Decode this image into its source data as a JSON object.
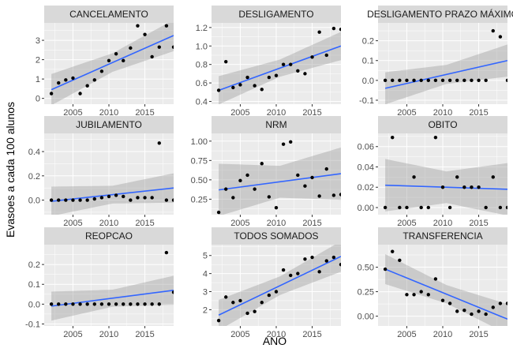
{
  "chart_data": {
    "type": "scatter",
    "facet_layout": "3x3",
    "x_label": "ANO",
    "y_label": "Evasoes a cada 100 alunos",
    "x_range": [
      2001,
      2019
    ],
    "x_ticks": [
      2005,
      2010,
      2015
    ],
    "trend": "linear fit with confidence band",
    "colors": {
      "point": "#000000",
      "line": "#3366ff",
      "band": "#999999",
      "panel": "#ebebeb",
      "strip": "#d9d9d9",
      "grid": "#ffffff"
    },
    "panels": [
      {
        "title": "CANCELAMENTO",
        "ylim": [
          -0.3,
          3.9
        ],
        "y_ticks": [
          0,
          1,
          2,
          3
        ],
        "x": [
          2002,
          2003,
          2004,
          2005,
          2006,
          2007,
          2008,
          2009,
          2010,
          2011,
          2012,
          2013,
          2014,
          2015,
          2016,
          2017,
          2018,
          2019
        ],
        "y": [
          0.25,
          0.8,
          0.95,
          1.05,
          0.25,
          0.65,
          0.95,
          1.4,
          1.95,
          2.3,
          1.95,
          2.6,
          3.75,
          3.3,
          2.15,
          2.65,
          3.75,
          2.65
        ],
        "fit": [
          0.45,
          3.25
        ],
        "band": [
          0.45,
          0.55
        ]
      },
      {
        "title": "DESLIGAMENTO",
        "ylim": [
          0.37,
          1.25
        ],
        "y_ticks": [
          0.4,
          0.6,
          0.8,
          1.0,
          1.2
        ],
        "y_tick_labels": [
          "0.4",
          "0.6",
          "0.8",
          "1.0",
          "1.2"
        ],
        "x": [
          2002,
          2003,
          2004,
          2005,
          2006,
          2007,
          2008,
          2009,
          2010,
          2011,
          2012,
          2013,
          2014,
          2015,
          2016,
          2017,
          2018,
          2019
        ],
        "y": [
          0.52,
          0.83,
          0.55,
          0.58,
          0.66,
          0.57,
          0.53,
          0.66,
          0.68,
          0.8,
          0.8,
          0.73,
          0.7,
          0.88,
          1.15,
          0.9,
          1.19,
          1.18
        ],
        "fit": [
          0.52,
          1.0
        ],
        "band": [
          0.09,
          0.1
        ]
      },
      {
        "title": "DESLIGAMENTO PRAZO MÁXIMO",
        "ylim": [
          -0.12,
          0.29
        ],
        "y_ticks": [
          -0.1,
          0.0,
          0.1,
          0.2
        ],
        "y_tick_labels": [
          "-0.1",
          "0.0",
          "0.1",
          "0.2"
        ],
        "x": [
          2002,
          2003,
          2004,
          2005,
          2006,
          2007,
          2008,
          2009,
          2010,
          2011,
          2012,
          2013,
          2014,
          2015,
          2016,
          2017,
          2018,
          2019
        ],
        "y": [
          0,
          0,
          0,
          0,
          0,
          0,
          0,
          0,
          0,
          0,
          0,
          0,
          0,
          0,
          0,
          0.25,
          0.22,
          0
        ],
        "fit": [
          -0.04,
          0.1
        ],
        "band": [
          0.045,
          0.055
        ]
      },
      {
        "title": "JUBILAMENTO",
        "ylim": [
          -0.12,
          0.55
        ],
        "y_ticks": [
          0.0,
          0.2,
          0.4
        ],
        "y_tick_labels": [
          "0.0",
          "0.2",
          "0.4"
        ],
        "x": [
          2002,
          2003,
          2004,
          2005,
          2006,
          2007,
          2008,
          2009,
          2010,
          2011,
          2012,
          2013,
          2014,
          2015,
          2016,
          2017,
          2018,
          2019
        ],
        "y": [
          0,
          0,
          0,
          0,
          0,
          0,
          0.01,
          0.02,
          0.03,
          0.04,
          0.03,
          0,
          0.02,
          0.02,
          0.02,
          0.47,
          0,
          0
        ],
        "fit": [
          -0.01,
          0.1
        ],
        "band": [
          0.07,
          0.08
        ]
      },
      {
        "title": "NRM",
        "ylim": [
          0.05,
          1.1
        ],
        "y_ticks": [
          0.25,
          0.5,
          0.75,
          1.0
        ],
        "y_tick_labels": [
          "0.25",
          "0.50",
          "0.75",
          "1.00"
        ],
        "x": [
          2002,
          2003,
          2004,
          2005,
          2006,
          2007,
          2008,
          2009,
          2010,
          2011,
          2012,
          2013,
          2014,
          2015,
          2016,
          2017,
          2018,
          2019
        ],
        "y": [
          0.08,
          0.38,
          0.27,
          0.49,
          0.56,
          0.38,
          0.71,
          0.28,
          0.14,
          0.96,
          0.99,
          0.56,
          0.42,
          0.53,
          0.29,
          0.64,
          0.3,
          0.31
        ],
        "fit": [
          0.37,
          0.58
        ],
        "band": [
          0.2,
          0.22
        ]
      },
      {
        "title": "OBITO",
        "ylim": [
          -0.007,
          0.073
        ],
        "y_ticks": [
          0.0,
          0.02,
          0.04,
          0.06
        ],
        "y_tick_labels": [
          "0.00",
          "0.02",
          "0.04",
          "0.06"
        ],
        "x": [
          2002,
          2003,
          2004,
          2005,
          2006,
          2007,
          2008,
          2009,
          2010,
          2011,
          2012,
          2013,
          2014,
          2015,
          2016,
          2017,
          2018,
          2019
        ],
        "y": [
          0,
          0.069,
          0,
          0,
          0.03,
          0,
          0,
          0.069,
          0.02,
          0,
          0.03,
          0.02,
          0.02,
          0.02,
          0,
          0.03,
          0,
          0
        ],
        "fit": [
          0.022,
          0.018
        ],
        "band": [
          0.015,
          0.017
        ]
      },
      {
        "title": "REOPCAO",
        "ylim": [
          -0.11,
          0.3
        ],
        "y_ticks": [
          -0.1,
          0.0,
          0.1,
          0.2
        ],
        "y_tick_labels": [
          "-0.1",
          "0.0",
          "0.1",
          "0.2"
        ],
        "x": [
          2002,
          2003,
          2004,
          2005,
          2006,
          2007,
          2008,
          2009,
          2010,
          2011,
          2012,
          2013,
          2014,
          2015,
          2016,
          2017,
          2018,
          2019
        ],
        "y": [
          0,
          0,
          0,
          0,
          0,
          0,
          0,
          0,
          0,
          0,
          0,
          0,
          0,
          0,
          0,
          0,
          0.26,
          0.06
        ],
        "fit": [
          -0.01,
          0.07
        ],
        "band": [
          0.04,
          0.05
        ]
      },
      {
        "title": "TODOS SOMADOS",
        "ylim": [
          1.1,
          5.6
        ],
        "y_ticks": [
          2,
          3,
          4,
          5
        ],
        "y_tick_labels": [
          "2",
          "3",
          "4",
          "5"
        ],
        "x": [
          2002,
          2003,
          2004,
          2005,
          2006,
          2007,
          2008,
          2009,
          2010,
          2011,
          2012,
          2013,
          2014,
          2015,
          2016,
          2017,
          2018,
          2019
        ],
        "y": [
          1.4,
          2.7,
          2.4,
          2.5,
          1.8,
          1.9,
          2.4,
          2.8,
          3.0,
          4.2,
          3.9,
          4.0,
          4.8,
          4.9,
          4.1,
          4.7,
          4.9,
          4.5
        ],
        "fit": [
          1.7,
          4.95
        ],
        "band": [
          0.5,
          0.55
        ]
      },
      {
        "title": "TRANSFERENCIA",
        "ylim": [
          -0.1,
          0.73
        ],
        "y_ticks": [
          0.0,
          0.25,
          0.5
        ],
        "y_tick_labels": [
          "0.00",
          "0.25",
          "0.50"
        ],
        "x": [
          2002,
          2003,
          2004,
          2005,
          2006,
          2007,
          2008,
          2009,
          2010,
          2011,
          2012,
          2013,
          2014,
          2015,
          2016,
          2017,
          2018,
          2019
        ],
        "y": [
          0.48,
          0.66,
          0.57,
          0.22,
          0.22,
          0.25,
          0.22,
          0.38,
          0.16,
          0.13,
          0.05,
          0.06,
          0.02,
          0.05,
          0.02,
          0.09,
          0.13,
          0.13
        ],
        "fit": [
          0.48,
          -0.03
        ],
        "band": [
          0.09,
          0.1
        ]
      }
    ]
  }
}
